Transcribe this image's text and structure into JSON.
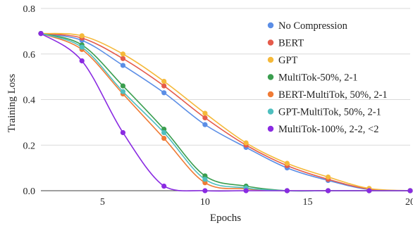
{
  "chart_data": {
    "type": "line",
    "xlabel": "Epochs",
    "ylabel": "Training Loss",
    "xlim": [
      2,
      20
    ],
    "ylim": [
      0,
      0.8
    ],
    "xticks": [
      5,
      10,
      15,
      20
    ],
    "yticks": [
      0.0,
      0.2,
      0.4,
      0.6,
      0.8
    ],
    "grid": "horizontal",
    "legend_position": "right",
    "series": [
      {
        "name": "No Compression",
        "color": "#5b8ee6",
        "x": [
          2,
          4,
          6,
          8,
          10,
          12,
          14,
          16,
          18,
          20
        ],
        "y": [
          0.69,
          0.66,
          0.55,
          0.43,
          0.29,
          0.19,
          0.1,
          0.045,
          0.005,
          0.0
        ]
      },
      {
        "name": "BERT",
        "color": "#e55b4b",
        "x": [
          2,
          4,
          6,
          8,
          10,
          12,
          14,
          16,
          18,
          20
        ],
        "y": [
          0.69,
          0.67,
          0.58,
          0.46,
          0.32,
          0.2,
          0.11,
          0.05,
          0.007,
          0.0
        ]
      },
      {
        "name": "GPT",
        "color": "#f5b93a",
        "x": [
          2,
          4,
          6,
          8,
          10,
          12,
          14,
          16,
          18,
          20
        ],
        "y": [
          0.69,
          0.68,
          0.6,
          0.48,
          0.34,
          0.21,
          0.12,
          0.06,
          0.01,
          0.0
        ]
      },
      {
        "name": "MultiTok-50%, 2-1",
        "color": "#3a9e4f",
        "x": [
          2,
          4,
          6,
          8,
          10,
          12,
          14,
          16,
          18,
          20
        ],
        "y": [
          0.69,
          0.64,
          0.46,
          0.27,
          0.065,
          0.02,
          0.0,
          0.0,
          0.0,
          0.0
        ]
      },
      {
        "name": "BERT-MultiTok, 50%, 2-1",
        "color": "#f07b35",
        "x": [
          2,
          4,
          6,
          8,
          10,
          12,
          14,
          16,
          18,
          20
        ],
        "y": [
          0.69,
          0.62,
          0.425,
          0.23,
          0.035,
          0.008,
          0.0,
          0.0,
          0.0,
          0.0
        ]
      },
      {
        "name": "GPT-MultiTok, 50%, 2-1",
        "color": "#4fbfbf",
        "x": [
          2,
          4,
          6,
          8,
          10,
          12,
          14,
          16,
          18,
          20
        ],
        "y": [
          0.69,
          0.63,
          0.435,
          0.255,
          0.05,
          0.012,
          0.0,
          0.0,
          0.0,
          0.0
        ]
      },
      {
        "name": "MultiTok-100%, 2-2, <2",
        "color": "#8a2be2",
        "x": [
          2,
          4,
          6,
          8,
          10,
          12,
          14,
          16,
          18,
          20
        ],
        "y": [
          0.69,
          0.57,
          0.255,
          0.02,
          0.0,
          0.0,
          0.0,
          0.0,
          0.0,
          0.0
        ]
      }
    ]
  }
}
